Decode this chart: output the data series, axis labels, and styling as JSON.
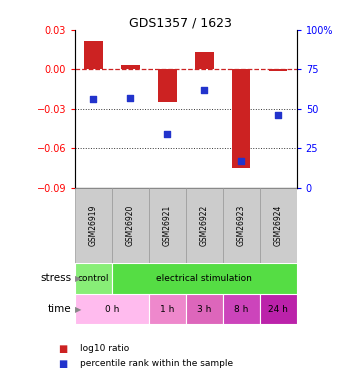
{
  "title": "GDS1357 / 1623",
  "samples": [
    "GSM26919",
    "GSM26920",
    "GSM26921",
    "GSM26922",
    "GSM26923",
    "GSM26924"
  ],
  "log10_ratio": [
    0.022,
    0.003,
    -0.025,
    0.013,
    -0.075,
    -0.001
  ],
  "percentile_rank": [
    56,
    57,
    34,
    62,
    17,
    46
  ],
  "ylim_left": [
    -0.09,
    0.03
  ],
  "ylim_right": [
    0,
    100
  ],
  "yticks_left": [
    -0.09,
    -0.06,
    -0.03,
    0,
    0.03
  ],
  "yticks_right": [
    0,
    25,
    50,
    75,
    100
  ],
  "bar_color": "#cc2222",
  "dot_color": "#2233cc",
  "dashed_line_color": "#cc2222",
  "grid_color": "#333333",
  "sample_box_color": "#cccccc",
  "sample_box_edge": "#999999",
  "stress_control_color": "#88ee77",
  "stress_elec_color": "#55dd44",
  "time_colors": [
    "#ffbbee",
    "#ee88cc",
    "#dd66bb",
    "#cc44bb",
    "#bb22aa"
  ],
  "time_labels": [
    "0 h",
    "1 h",
    "3 h",
    "8 h",
    "24 h"
  ],
  "legend_bar_label": "log10 ratio",
  "legend_dot_label": "percentile rank within the sample",
  "background_color": "#ffffff"
}
